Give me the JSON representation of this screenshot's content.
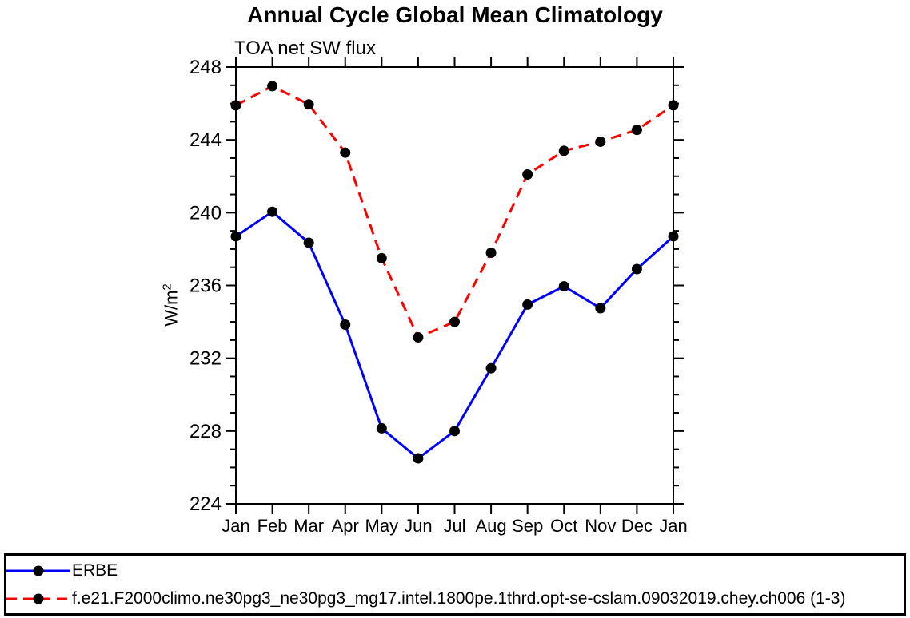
{
  "chart_data": {
    "type": "line",
    "title": "Annual Cycle Global Mean Climatology",
    "subtitle": "TOA net SW flux",
    "xlabel": "",
    "ylabel": {
      "base": "W/m",
      "sup": "2"
    },
    "x_categories": [
      "Jan",
      "Feb",
      "Mar",
      "Apr",
      "May",
      "Jun",
      "Jul",
      "Aug",
      "Sep",
      "Oct",
      "Nov",
      "Dec",
      "Jan"
    ],
    "ylim": [
      224,
      248
    ],
    "y_major_ticks": [
      224,
      228,
      232,
      236,
      240,
      244,
      248
    ],
    "y_minor_step": 1,
    "grid": false,
    "legend_position": "bottom",
    "series": [
      {
        "name": "ERBE",
        "color": "#0000ff",
        "style": "solid",
        "marker": "circle",
        "marker_color": "#000000",
        "values": [
          238.7,
          240.05,
          238.35,
          233.85,
          228.15,
          226.5,
          228.0,
          231.45,
          234.95,
          235.95,
          234.75,
          236.9,
          238.7
        ]
      },
      {
        "name": "f.e21.F2000climo.ne30pg3_ne30pg3_mg17.intel.1800pe.1thrd.opt-se-cslam.09032019.chey.ch006 (1-3)",
        "color": "#ff0000",
        "style": "dashed",
        "marker": "circle",
        "marker_color": "#000000",
        "values": [
          245.9,
          246.95,
          245.95,
          243.3,
          237.5,
          233.15,
          234.0,
          237.8,
          242.1,
          243.4,
          243.9,
          244.55,
          245.9
        ]
      }
    ]
  }
}
